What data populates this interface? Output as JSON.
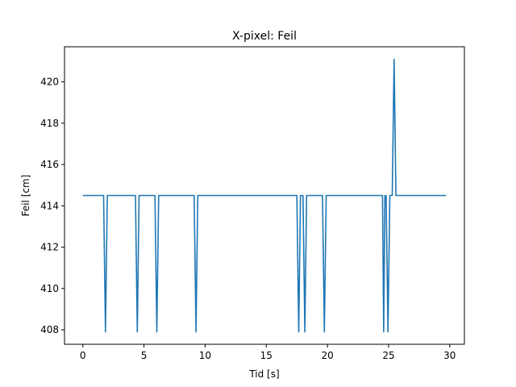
{
  "chart_data": {
    "type": "line",
    "title": "X-pixel: Feil",
    "xlabel": "Tid [s]",
    "ylabel": "Feil [cm]",
    "xlim": [
      -1.5,
      31.2
    ],
    "ylim": [
      407.3,
      421.7
    ],
    "xticks": [
      0,
      5,
      10,
      15,
      20,
      25,
      30
    ],
    "yticks": [
      408,
      410,
      412,
      414,
      416,
      418,
      420
    ],
    "xtick_labels": [
      "0",
      "5",
      "10",
      "15",
      "20",
      "25",
      "30"
    ],
    "ytick_labels": [
      "408",
      "410",
      "412",
      "414",
      "416",
      "418",
      "420"
    ],
    "grid": false,
    "series": [
      {
        "color": "#1f77b4",
        "points": [
          [
            0,
            414.5
          ],
          [
            1.7,
            414.5
          ],
          [
            1.85,
            407.9
          ],
          [
            2.0,
            414.5
          ],
          [
            4.3,
            414.5
          ],
          [
            4.45,
            407.9
          ],
          [
            4.6,
            414.5
          ],
          [
            5.9,
            414.5
          ],
          [
            6.05,
            407.9
          ],
          [
            6.2,
            414.5
          ],
          [
            9.1,
            414.5
          ],
          [
            9.25,
            407.9
          ],
          [
            9.4,
            414.5
          ],
          [
            17.5,
            414.5
          ],
          [
            17.65,
            407.9
          ],
          [
            17.8,
            414.5
          ],
          [
            18.0,
            414.5
          ],
          [
            18.15,
            407.9
          ],
          [
            18.3,
            414.5
          ],
          [
            19.6,
            414.5
          ],
          [
            19.75,
            407.9
          ],
          [
            19.9,
            414.5
          ],
          [
            24.5,
            414.5
          ],
          [
            24.6,
            407.9
          ],
          [
            24.7,
            414.5
          ],
          [
            24.8,
            414.5
          ],
          [
            24.95,
            407.9
          ],
          [
            25.1,
            414.5
          ],
          [
            25.3,
            414.5
          ],
          [
            25.45,
            421.1
          ],
          [
            25.6,
            414.5
          ],
          [
            29.7,
            414.5
          ]
        ]
      }
    ]
  }
}
